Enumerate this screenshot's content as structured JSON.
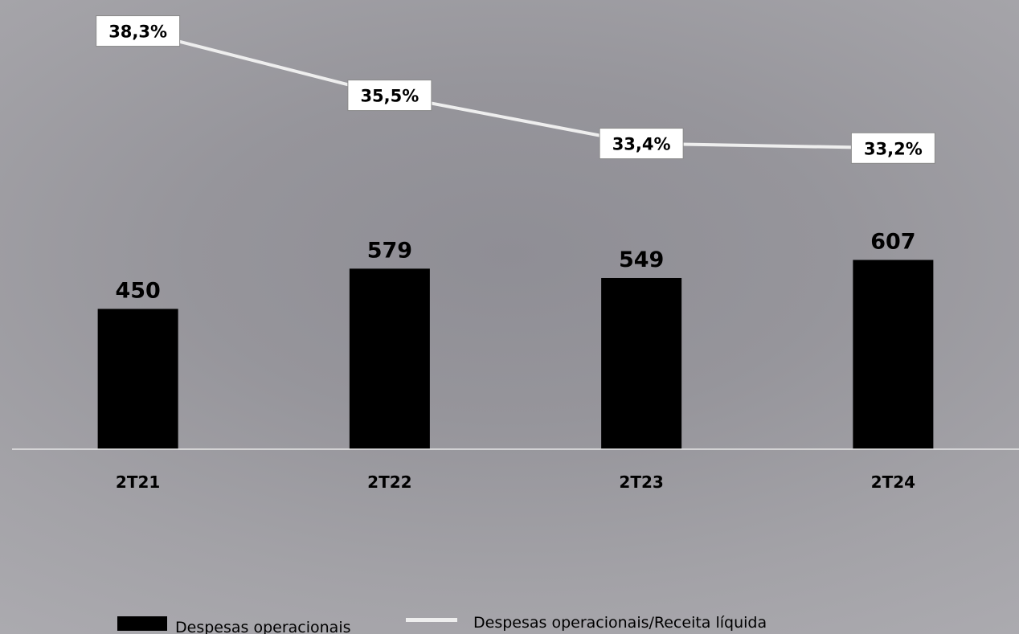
{
  "chart_data": {
    "type": "bar",
    "categories": [
      "2T21",
      "2T22",
      "2T23",
      "2T24"
    ],
    "series": [
      {
        "name": "Despesas operacionais",
        "type": "bar",
        "values": [
          450,
          579,
          549,
          607
        ],
        "labels": [
          "450",
          "579",
          "549",
          "607"
        ],
        "color": "#000000"
      },
      {
        "name": "Despesas operacionais/Receita líquida",
        "type": "line",
        "values": [
          38.3,
          35.5,
          33.4,
          33.2
        ],
        "labels": [
          "38,3%",
          "35,5%",
          "33,4%",
          "33,2%"
        ],
        "color": "#eeeeee"
      }
    ],
    "bar_ylim": [
      0,
      1250
    ],
    "line_ylim": [
      30,
      40
    ],
    "legend_position": "bottom",
    "grid": false
  },
  "colors": {
    "bar": "#000000",
    "line": "#eeeeee",
    "axis": "#e6e6e6",
    "label_box": "#ffffff"
  }
}
